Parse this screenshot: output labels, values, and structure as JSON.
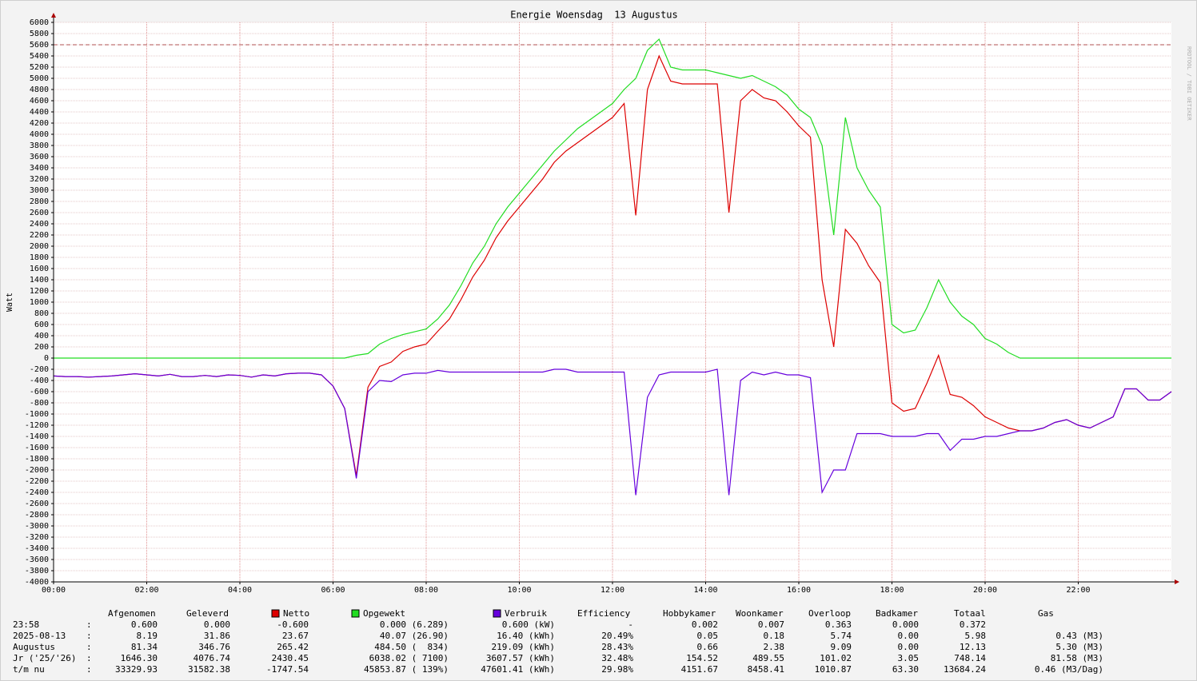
{
  "chart_data": {
    "type": "line",
    "title": "Energie Woensdag  13 Augustus",
    "y_label": "Watt",
    "watermark": "RRDTOOL / TOBI OETIKER",
    "x": [
      0,
      0.25,
      0.5,
      0.75,
      1,
      1.25,
      1.5,
      1.75,
      2,
      2.25,
      2.5,
      2.75,
      3,
      3.25,
      3.5,
      3.75,
      4,
      4.25,
      4.5,
      4.75,
      5,
      5.25,
      5.5,
      5.75,
      6,
      6.25,
      6.5,
      6.75,
      7,
      7.25,
      7.5,
      7.75,
      8,
      8.25,
      8.5,
      8.75,
      9,
      9.25,
      9.5,
      9.75,
      10,
      10.25,
      10.5,
      10.75,
      11,
      11.25,
      11.5,
      11.75,
      12,
      12.25,
      12.5,
      12.75,
      13,
      13.25,
      13.5,
      13.75,
      14,
      14.25,
      14.5,
      14.75,
      15,
      15.25,
      15.5,
      15.75,
      16,
      16.25,
      16.5,
      16.75,
      17,
      17.25,
      17.5,
      17.75,
      18,
      18.25,
      18.5,
      18.75,
      19,
      19.25,
      19.5,
      19.75,
      20,
      20.25,
      20.5,
      20.75,
      21,
      21.25,
      21.5,
      21.75,
      22,
      22.25,
      22.5,
      22.75,
      23,
      23.25,
      23.5,
      23.75,
      24
    ],
    "series": [
      {
        "name": "Opgewekt",
        "color": "#22dd22",
        "values": [
          0,
          0,
          0,
          0,
          0,
          0,
          0,
          0,
          0,
          0,
          0,
          0,
          0,
          0,
          0,
          0,
          0,
          0,
          0,
          0,
          0,
          0,
          0,
          0,
          0,
          0,
          50,
          80,
          250,
          350,
          420,
          470,
          520,
          700,
          950,
          1300,
          1700,
          2000,
          2400,
          2700,
          2950,
          3200,
          3450,
          3700,
          3900,
          4100,
          4250,
          4400,
          4550,
          4800,
          5000,
          5500,
          5700,
          5200,
          5150,
          5150,
          5150,
          5100,
          5050,
          5000,
          5050,
          4950,
          4850,
          4700,
          4450,
          4300,
          3800,
          2200,
          4300,
          3400,
          3000,
          2700,
          600,
          450,
          500,
          900,
          1400,
          1000,
          750,
          600,
          350,
          250,
          100,
          0,
          0,
          0,
          0,
          0,
          0,
          0,
          0,
          0,
          0,
          0,
          0,
          0,
          0
        ]
      },
      {
        "name": "Netto",
        "color": "#dd0000",
        "values": [
          -320,
          -330,
          -330,
          -340,
          -330,
          -320,
          -300,
          -280,
          -300,
          -320,
          -290,
          -330,
          -330,
          -310,
          -330,
          -300,
          -310,
          -340,
          -300,
          -320,
          -280,
          -270,
          -270,
          -300,
          -500,
          -900,
          -2100,
          -520,
          -150,
          -70,
          120,
          200,
          250,
          480,
          700,
          1050,
          1450,
          1750,
          2150,
          2450,
          2700,
          2950,
          3200,
          3500,
          3700,
          3850,
          4000,
          4150,
          4300,
          4550,
          2550,
          4800,
          5400,
          4950,
          4900,
          4900,
          4900,
          4900,
          2600,
          4600,
          4800,
          4650,
          4600,
          4400,
          4150,
          3950,
          1400,
          200,
          2300,
          2050,
          1650,
          1350,
          -800,
          -950,
          -900,
          -450,
          50,
          -650,
          -700,
          -850,
          -1050,
          -1150,
          -1250,
          -1300,
          -1300,
          -1250,
          -1150,
          -1100,
          -1200,
          -1250,
          -1150,
          -1050,
          -550,
          -550,
          -750,
          -750,
          -600
        ]
      },
      {
        "name": "Verbruik",
        "color": "#6600dd",
        "values": [
          -320,
          -330,
          -330,
          -340,
          -330,
          -320,
          -300,
          -280,
          -300,
          -320,
          -290,
          -330,
          -330,
          -310,
          -330,
          -300,
          -310,
          -340,
          -300,
          -320,
          -280,
          -270,
          -270,
          -300,
          -500,
          -900,
          -2150,
          -600,
          -400,
          -420,
          -300,
          -270,
          -270,
          -220,
          -250,
          -250,
          -250,
          -250,
          -250,
          -250,
          -250,
          -250,
          -250,
          -200,
          -200,
          -250,
          -250,
          -250,
          -250,
          -250,
          -2450,
          -700,
          -300,
          -250,
          -250,
          -250,
          -250,
          -200,
          -2450,
          -400,
          -250,
          -300,
          -250,
          -300,
          -300,
          -350,
          -2400,
          -2000,
          -2000,
          -1350,
          -1350,
          -1350,
          -1400,
          -1400,
          -1400,
          -1350,
          -1350,
          -1650,
          -1450,
          -1450,
          -1400,
          -1400,
          -1350,
          -1300,
          -1300,
          -1250,
          -1150,
          -1100,
          -1200,
          -1250,
          -1150,
          -1050,
          -550,
          -550,
          -750,
          -750,
          -600
        ]
      }
    ],
    "hline": 5600,
    "xlim": [
      0,
      24
    ],
    "xticks": [
      {
        "value": 0,
        "label": "00:00"
      },
      {
        "value": 2,
        "label": "02:00"
      },
      {
        "value": 4,
        "label": "04:00"
      },
      {
        "value": 6,
        "label": "06:00"
      },
      {
        "value": 8,
        "label": "08:00"
      },
      {
        "value": 10,
        "label": "10:00"
      },
      {
        "value": 12,
        "label": "12:00"
      },
      {
        "value": 14,
        "label": "14:00"
      },
      {
        "value": 16,
        "label": "16:00"
      },
      {
        "value": 18,
        "label": "18:00"
      },
      {
        "value": 20,
        "label": "20:00"
      },
      {
        "value": 22,
        "label": "22:00"
      }
    ],
    "ylim": [
      -4000,
      6000
    ],
    "yticks": [
      -4000,
      -3800,
      -3600,
      -3400,
      -3200,
      -3000,
      -2800,
      -2600,
      -2400,
      -2200,
      -2000,
      -1800,
      -1600,
      -1400,
      -1200,
      -1000,
      -800,
      -600,
      -400,
      -200,
      0,
      200,
      400,
      600,
      800,
      1000,
      1200,
      1400,
      1600,
      1800,
      2000,
      2200,
      2400,
      2600,
      2800,
      3000,
      3200,
      3400,
      3600,
      3800,
      4000,
      4200,
      4400,
      4600,
      4800,
      5000,
      5200,
      5400,
      5600,
      5800,
      6000
    ],
    "grid": true
  },
  "table": {
    "headers": [
      "Afgenomen",
      "Geleverd",
      "Efficiency",
      "Hobbykamer",
      "Woonkamer",
      "Overloop",
      "Badkamer",
      "Totaal",
      "Gas"
    ],
    "rows": [
      [
        "23:58",
        ":",
        "0.600",
        "0.000",
        "-0.600",
        "0.000 (6.289)",
        "0.600 (kW)",
        "-",
        "0.002",
        "0.007",
        "0.363",
        "0.000",
        "0.372"
      ],
      [
        "2025-08-13",
        ":",
        "8.19",
        "31.86",
        "23.67",
        "40.07 (26.90)",
        "16.40 (kWh)",
        "20.49%",
        "0.05",
        "0.18",
        "5.74",
        "0.00",
        "5.98",
        "0.43 (M3)"
      ],
      [
        "Augustus",
        ":",
        "81.34",
        "346.76",
        "265.42",
        "484.50 (  834)",
        "219.09 (kWh)",
        "28.43%",
        "0.66",
        "2.38",
        "9.09",
        "0.00",
        "12.13",
        "5.30 (M3)"
      ],
      [
        "Jr ('25/'26)",
        ":",
        "1646.30",
        "4076.74",
        "2430.45",
        "6038.02 ( 7100)",
        "3607.57 (kWh)",
        "32.48%",
        "154.52",
        "489.55",
        "101.02",
        "3.05",
        "748.14",
        "81.58 (M3)"
      ],
      [
        "t/m nu",
        ":",
        "33329.93",
        "31582.38",
        "-1747.54",
        "45853.87 ( 139%)",
        "47601.41 (kWh)",
        "29.98%",
        "4151.67",
        "8458.41",
        "1010.87",
        "63.30",
        "13684.24",
        "0.46 (M3/Dag)"
      ]
    ]
  }
}
